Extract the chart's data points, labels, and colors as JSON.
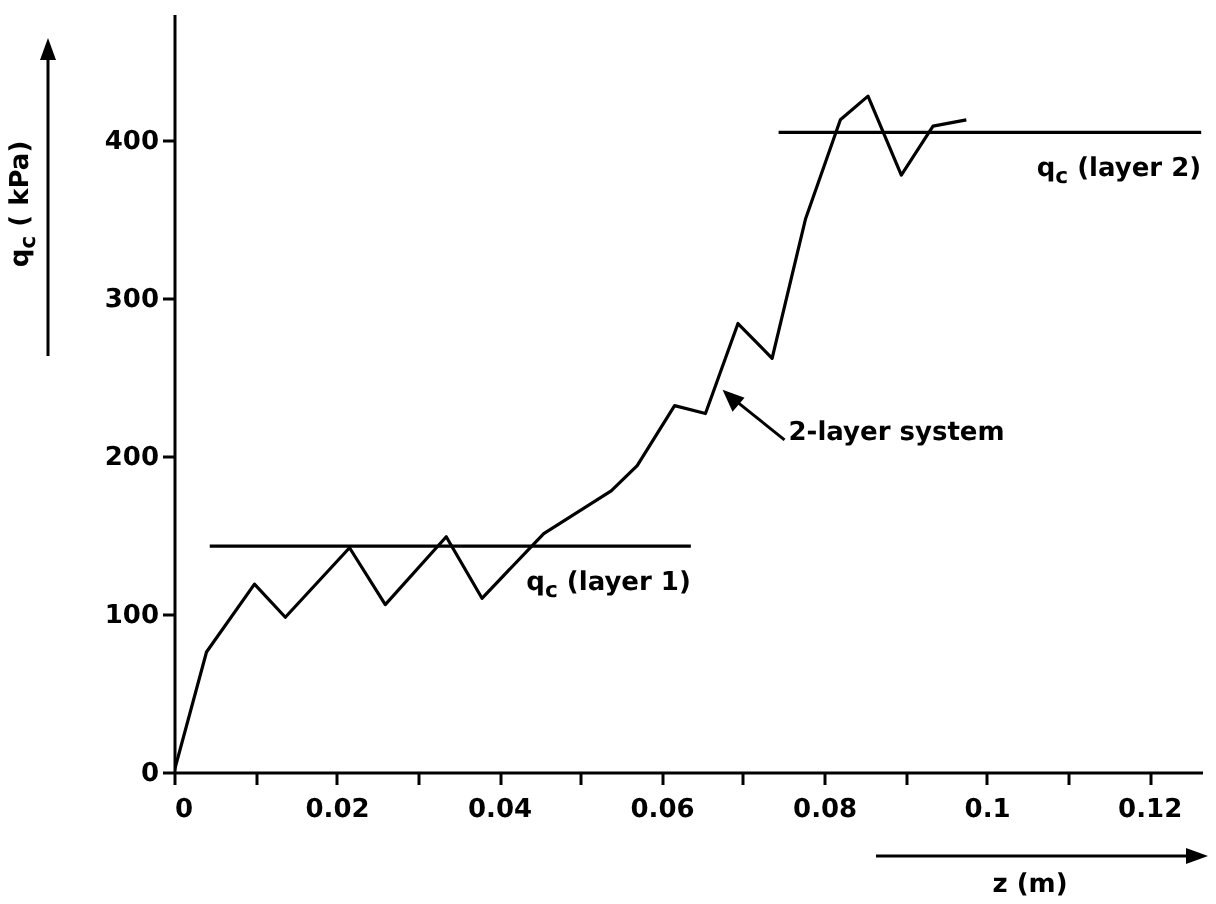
{
  "chart_data": {
    "type": "line",
    "xlabel": "z (m)",
    "ylabel": "q$_{c}$ ( kPa)",
    "xlim": [
      0,
      0.1265
    ],
    "ylim": [
      0,
      480
    ],
    "xticks": [
      0,
      {
        "value": 0.01,
        "label": null
      },
      0.02,
      {
        "value": 0.03,
        "label": null
      },
      0.04,
      {
        "value": 0.05,
        "label": null
      },
      0.06,
      {
        "value": 0.07,
        "label": null
      },
      0.08,
      {
        "value": 0.09,
        "label": null
      },
      0.1,
      {
        "value": 0.11,
        "label": null
      },
      0.12
    ],
    "yticks": [
      0,
      100,
      200,
      300,
      400
    ],
    "series": [
      {
        "color": "#000000",
        "x": [
          0,
          0.004,
          0.0099,
          0.0137,
          0.0216,
          0.026,
          0.0335,
          0.0379,
          0.0455,
          0.0538,
          0.057,
          0.0616,
          0.0654,
          0.0694,
          0.0736,
          0.0777,
          0.082,
          0.0854,
          0.0895,
          0.0934,
          0.0975
        ],
        "values": [
          0,
          76,
          119,
          98,
          142,
          106,
          149,
          110,
          151,
          178,
          194,
          232,
          227,
          284,
          262,
          350,
          413,
          428,
          378,
          409,
          413
        ]
      },
      {
        "name": "q$_{c}$ (layer 1)",
        "color": "#000000",
        "x": [
          0.0044,
          0.0636
        ],
        "values": [
          143,
          143
        ]
      },
      {
        "name": "q$_{c}$ (layer 2)",
        "color": "#000000",
        "x": [
          0.0744,
          0.1264
        ],
        "values": [
          405,
          405
        ]
      }
    ],
    "annotations": [
      {
        "text": "2-layer system",
        "x": 0.0675,
        "y": 242
      }
    ]
  }
}
